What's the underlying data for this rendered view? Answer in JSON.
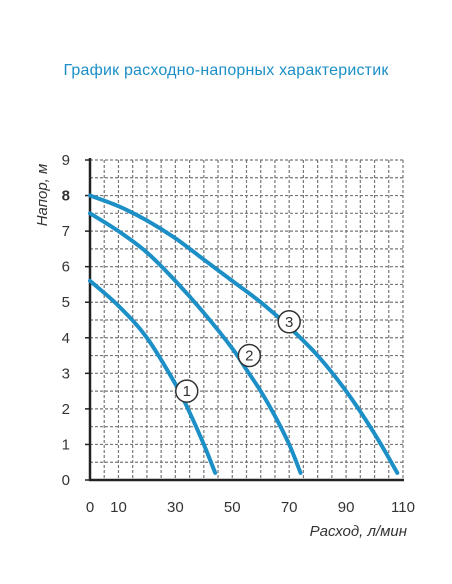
{
  "title": "График расходно-напорных характеристик",
  "chart_data": {
    "type": "line",
    "title": "График расходно-напорных характеристик",
    "xlabel": "Расход, л/мин",
    "ylabel": "Напор, м",
    "xlim": [
      0,
      110
    ],
    "ylim": [
      0,
      9
    ],
    "x_ticks": [
      "0",
      "10",
      "30",
      "50",
      "70",
      "90",
      "110"
    ],
    "x_tick_values": [
      0,
      10,
      30,
      50,
      70,
      90,
      110
    ],
    "y_ticks": [
      "0",
      "1",
      "2",
      "3",
      "4",
      "5",
      "6",
      "7",
      "8",
      "9"
    ],
    "y_tick_values": [
      0,
      1,
      2,
      3,
      4,
      5,
      6,
      7,
      8,
      9
    ],
    "highlight_tick": "8",
    "grid": true,
    "colors": {
      "curve": "#1d8fc7",
      "grid": "#777777",
      "axis": "#222222",
      "title": "#1b8fc6",
      "highlight": "#1d8fc7"
    },
    "series": [
      {
        "label": "1",
        "x": [
          0,
          10,
          20,
          30,
          35,
          40,
          44
        ],
        "y": [
          5.6,
          4.9,
          4.0,
          2.7,
          1.9,
          1.0,
          0.2
        ]
      },
      {
        "label": "2",
        "x": [
          0,
          10,
          20,
          30,
          40,
          50,
          55,
          60,
          65,
          70,
          74
        ],
        "y": [
          7.5,
          7.0,
          6.4,
          5.6,
          4.7,
          3.7,
          3.1,
          2.5,
          1.8,
          1.0,
          0.2
        ]
      },
      {
        "label": "3",
        "x": [
          0,
          10,
          20,
          30,
          40,
          50,
          60,
          70,
          80,
          90,
          100,
          108
        ],
        "y": [
          8.0,
          7.7,
          7.3,
          6.8,
          6.2,
          5.6,
          5.0,
          4.3,
          3.5,
          2.5,
          1.3,
          0.2
        ]
      }
    ],
    "label_positions": [
      {
        "label": "1",
        "x": 34,
        "y": 2.5
      },
      {
        "label": "2",
        "x": 56,
        "y": 3.5
      },
      {
        "label": "3",
        "x": 70,
        "y": 4.45
      }
    ]
  }
}
